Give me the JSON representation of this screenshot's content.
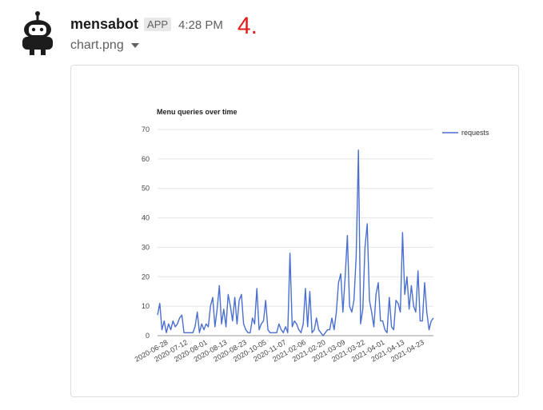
{
  "message": {
    "sender": "mensabot",
    "badge": "APP",
    "time": "4:28 PM",
    "annotation": "4.",
    "file_name": "chart.png"
  },
  "colors": {
    "series": "#4a6fcf",
    "annotation": "#e01e1e"
  },
  "icons": {
    "avatar": "robot-avatar-icon",
    "file_menu": "caret-down-icon"
  },
  "chart_data": {
    "type": "line",
    "title": "Menu queries over time",
    "ylim": [
      0,
      70
    ],
    "yticks": [
      0,
      10,
      20,
      30,
      40,
      50,
      60,
      70
    ],
    "xtick_labels": [
      "2020-06-28",
      "2020-07-12",
      "2020-08-01",
      "2020-08-13",
      "2020-08-23",
      "2020-10-05",
      "2020-11-07",
      "2021-02-06",
      "2021-02-20",
      "2021-03-09",
      "2021-03-22",
      "2021-04-01",
      "2021-04-13",
      "2021-04-23"
    ],
    "legend_position": "right",
    "grid": true,
    "series": [
      {
        "name": "requests",
        "values": [
          7,
          11,
          2,
          5,
          1,
          4,
          2,
          5,
          3,
          4,
          6,
          7,
          1,
          1,
          1,
          1,
          1,
          3,
          8,
          1,
          4,
          2,
          4,
          3,
          10,
          13,
          3,
          9,
          17,
          4,
          9,
          3,
          14,
          10,
          5,
          13,
          4,
          12,
          14,
          4,
          2,
          1,
          1,
          6,
          4,
          16,
          2,
          4,
          5,
          12,
          2,
          1,
          1,
          1,
          1,
          4,
          2,
          1,
          3,
          1,
          28,
          3,
          5,
          4,
          2,
          1,
          4,
          16,
          3,
          15,
          1,
          2,
          6,
          2,
          1,
          0,
          1,
          2,
          2,
          6,
          2,
          8,
          18,
          21,
          8,
          20,
          34,
          10,
          8,
          12,
          27,
          63,
          4,
          9,
          30,
          38,
          12,
          8,
          3,
          14,
          18,
          5,
          5,
          2,
          1,
          13,
          3,
          2,
          12,
          11,
          8,
          35,
          14,
          20,
          9,
          17,
          10,
          8,
          22,
          5,
          5,
          18,
          8,
          2,
          5,
          6
        ]
      }
    ]
  }
}
